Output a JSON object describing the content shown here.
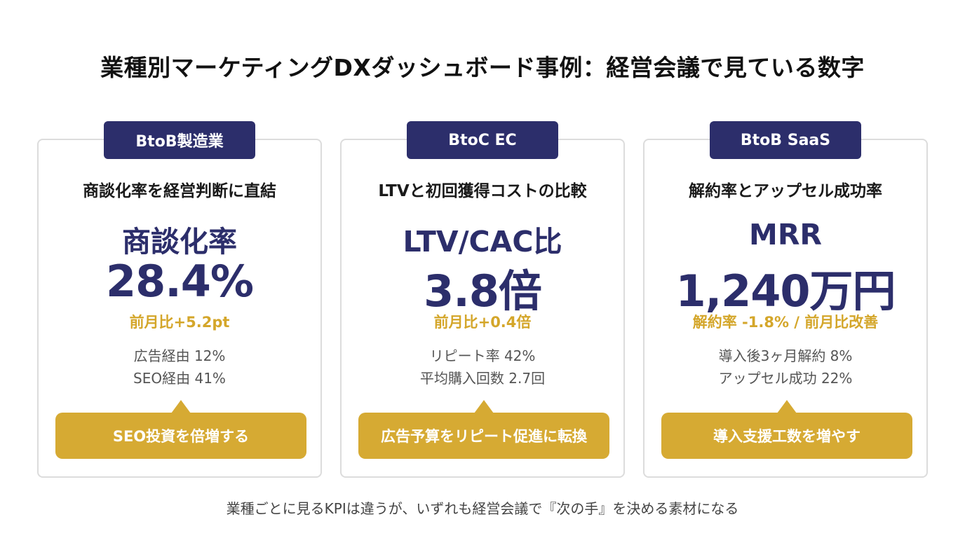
{
  "title": "業種別マーケティングDXダッシュボード事例：経営会議で見ている数字",
  "cards": [
    {
      "tag": "BtoB製造業",
      "heading": "商談化率を経営判断に直結",
      "metric_label": "商談化率",
      "metric_value": "28.4%",
      "delta": "前月比+5.2pt",
      "details": [
        "広告経由 12%",
        "SEO経由 41%"
      ],
      "action": "SEO投資を倍増する"
    },
    {
      "tag": "BtoC EC",
      "heading": "LTVと初回獲得コストの比較",
      "metric_label": "LTV/CAC比",
      "metric_value": "3.8倍",
      "delta": "前月比+0.4倍",
      "details": [
        "リピート率 42%",
        "平均購入回数 2.7回"
      ],
      "action": "広告予算をリピート促進に転換"
    },
    {
      "tag": "BtoB SaaS",
      "heading": "解約率とアップセル成功率",
      "metric_label": "MRR",
      "metric_value": "1,240万円",
      "delta": "解約率 -1.8% / 前月比改善",
      "details": [
        "導入後3ヶ月解約 8%",
        "アップセル成功 22%"
      ],
      "action": "導入支援工数を増やす"
    }
  ],
  "footer": "業種ごとに見るKPIは違うが、いずれも経営会議で『次の手』を決める素材になる",
  "colors": {
    "navy": "#2c2e6b",
    "gold": "#d6aa33",
    "gold_text": "#d4a62a",
    "card_border": "#dcdcdc"
  }
}
